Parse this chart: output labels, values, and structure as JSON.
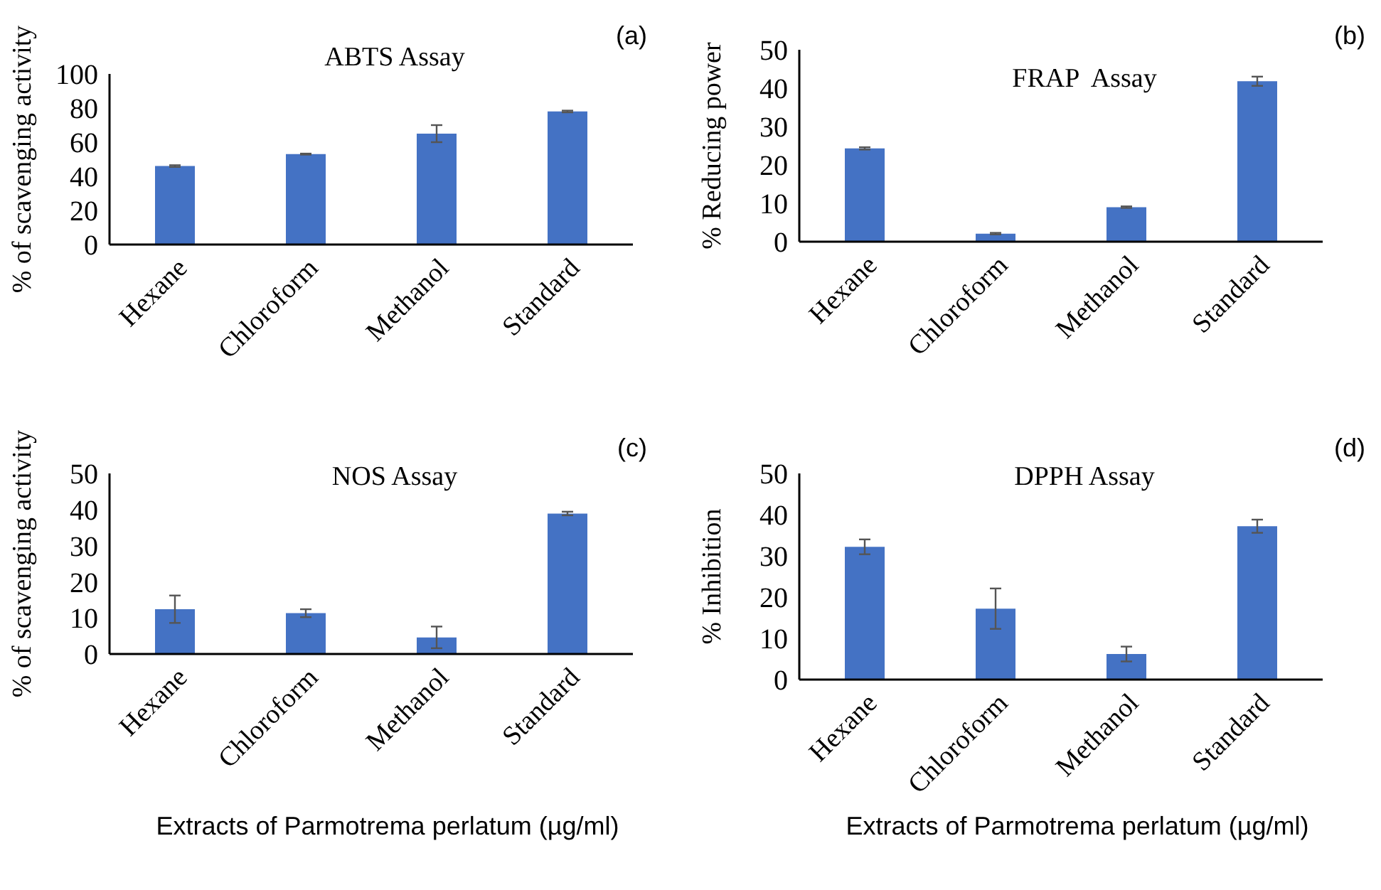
{
  "chart_data": [
    {
      "type": "bar",
      "title": "ABTS Assay",
      "ylabel": "% of scavenging activity",
      "annotations": [
        "(a)"
      ],
      "categories": [
        "Hexane",
        "Chloroform",
        "Methanol",
        "Standard"
      ],
      "values": [
        46,
        53,
        65,
        78
      ],
      "errors": [
        0.5,
        0.3,
        5,
        0.5
      ],
      "color": "#4472c4",
      "ylim": [
        0,
        100
      ],
      "yticks": [
        0,
        20,
        40,
        60,
        80,
        100
      ]
    },
    {
      "type": "bar",
      "title": "FRAP  Assay",
      "ylabel": "% Reducing power",
      "annotations": [
        "(b)"
      ],
      "categories": [
        "Hexane",
        "Chloroform",
        "Methanol",
        "Standard"
      ],
      "values": [
        24.3,
        2.1,
        9,
        41.8
      ],
      "errors": [
        0.3,
        0.2,
        0.2,
        1.2
      ],
      "color": "#4472c4",
      "ylim": [
        0,
        50
      ],
      "yticks": [
        0,
        10,
        20,
        30,
        40,
        50
      ]
    },
    {
      "type": "bar",
      "title": "NOS Assay",
      "ylabel": "% of scavenging activity",
      "xlabel": "Extracts of Parmotrema perlatum (µg/ml)",
      "annotations": [
        "(c)"
      ],
      "categories": [
        "Hexane",
        "Chloroform",
        "Methanol",
        "Standard"
      ],
      "values": [
        12.4,
        11.3,
        4.6,
        38.9
      ],
      "errors": [
        3.8,
        1.1,
        3,
        0.5
      ],
      "color": "#4472c4",
      "ylim": [
        0,
        50
      ],
      "yticks": [
        0,
        10,
        20,
        30,
        40,
        50
      ]
    },
    {
      "type": "bar",
      "title": "DPPH Assay",
      "ylabel": "% Inhibition",
      "xlabel": "Extracts of Parmotrema perlatum (µg/ml)",
      "annotations": [
        "(d)"
      ],
      "categories": [
        "Hexane",
        "Chloroform",
        "Methanol",
        "Standard"
      ],
      "values": [
        32.2,
        17.2,
        6.2,
        37.2
      ],
      "errors": [
        1.8,
        4.9,
        1.8,
        1.6
      ],
      "color": "#4472c4",
      "ylim": [
        0,
        50
      ],
      "yticks": [
        0,
        10,
        20,
        30,
        40,
        50
      ]
    }
  ]
}
